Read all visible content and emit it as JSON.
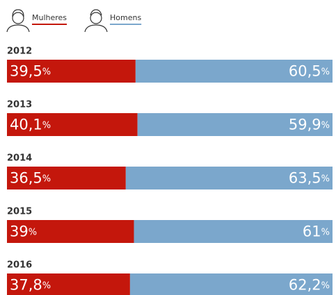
{
  "chart_data": {
    "type": "stacked-bar-horizontal",
    "categories": [
      "2012",
      "2013",
      "2014",
      "2015",
      "2016"
    ],
    "xlim": [
      0,
      100
    ],
    "series": [
      {
        "name": "Mulheres",
        "color": "#c4170c",
        "values": [
          39.5,
          40.1,
          36.5,
          39,
          37.8
        ],
        "value_labels": [
          "39,5%",
          "40,1%",
          "36,5%",
          "39%",
          "37,8%"
        ]
      },
      {
        "name": "Homens",
        "color": "#7ba7cc",
        "values": [
          60.5,
          59.9,
          63.5,
          61,
          62.2
        ],
        "value_labels": [
          "60,5%",
          "59,9%",
          "63,5%",
          "61%",
          "62,2%"
        ]
      }
    ]
  }
}
